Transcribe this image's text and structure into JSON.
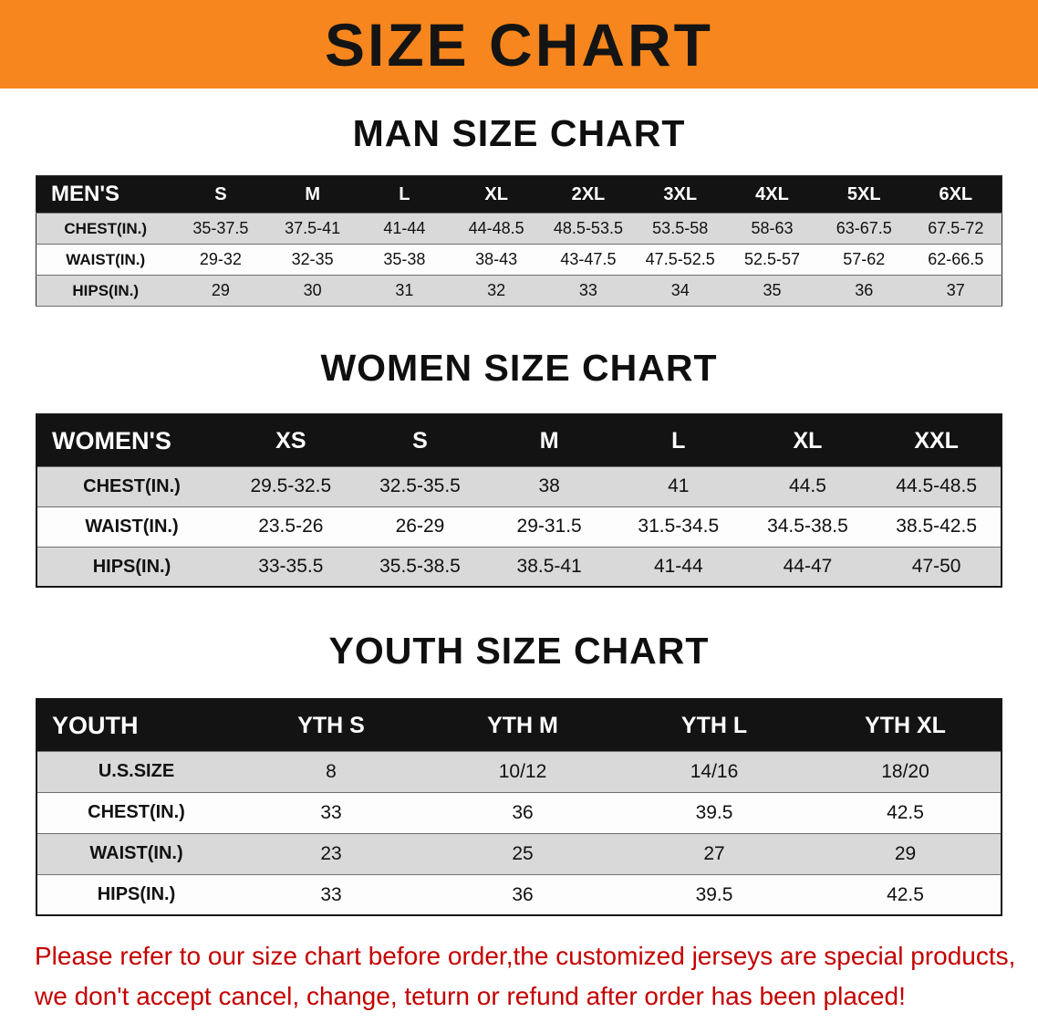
{
  "banner": {
    "title": "SIZE CHART"
  },
  "colors": {
    "banner_bg": "#F6861D",
    "table_header_bg": "#131313",
    "row_shaded": "#d9d9d9",
    "disclaimer_text": "#c40000"
  },
  "disclaimer": {
    "line1": "Please refer to our size chart before order,the customized jerseys are special products,",
    "line2": "we don't accept cancel, change, teturn or refund after order has been placed!"
  },
  "chart_data": [
    {
      "type": "table",
      "title": "MAN SIZE CHART",
      "header": [
        "MEN'S",
        "S",
        "M",
        "L",
        "XL",
        "2XL",
        "3XL",
        "4XL",
        "5XL",
        "6XL"
      ],
      "rows": [
        [
          "CHEST(IN.)",
          "35-37.5",
          "37.5-41",
          "41-44",
          "44-48.5",
          "48.5-53.5",
          "53.5-58",
          "58-63",
          "63-67.5",
          "67.5-72"
        ],
        [
          "WAIST(IN.)",
          "29-32",
          "32-35",
          "35-38",
          "38-43",
          "43-47.5",
          "47.5-52.5",
          "52.5-57",
          "57-62",
          "62-66.5"
        ],
        [
          "HIPS(IN.)",
          "29",
          "30",
          "31",
          "32",
          "33",
          "34",
          "35",
          "36",
          "37"
        ]
      ]
    },
    {
      "type": "table",
      "title": "WOMEN SIZE CHART",
      "header": [
        "WOMEN'S",
        "XS",
        "S",
        "M",
        "L",
        "XL",
        "XXL"
      ],
      "rows": [
        [
          "CHEST(IN.)",
          "29.5-32.5",
          "32.5-35.5",
          "38",
          "41",
          "44.5",
          "44.5-48.5"
        ],
        [
          "WAIST(IN.)",
          "23.5-26",
          "26-29",
          "29-31.5",
          "31.5-34.5",
          "34.5-38.5",
          "38.5-42.5"
        ],
        [
          "HIPS(IN.)",
          "33-35.5",
          "35.5-38.5",
          "38.5-41",
          "41-44",
          "44-47",
          "47-50"
        ]
      ]
    },
    {
      "type": "table",
      "title": "YOUTH SIZE CHART",
      "header": [
        "YOUTH",
        "YTH S",
        "YTH M",
        "YTH L",
        "YTH XL"
      ],
      "rows": [
        [
          "U.S.SIZE",
          "8",
          "10/12",
          "14/16",
          "18/20"
        ],
        [
          "CHEST(IN.)",
          "33",
          "36",
          "39.5",
          "42.5"
        ],
        [
          "WAIST(IN.)",
          "23",
          "25",
          "27",
          "29"
        ],
        [
          "HIPS(IN.)",
          "33",
          "36",
          "39.5",
          "42.5"
        ]
      ]
    }
  ]
}
